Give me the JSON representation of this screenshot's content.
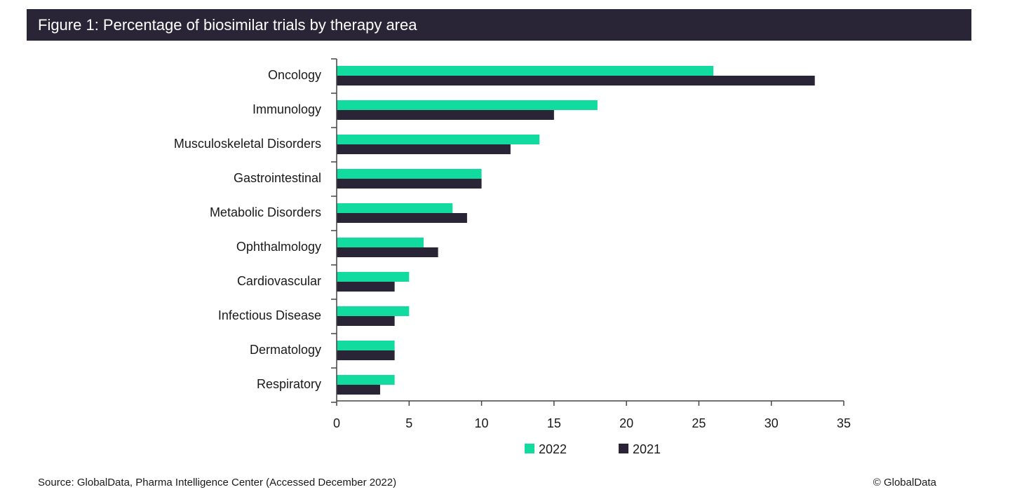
{
  "figure": {
    "title": "Figure 1: Percentage of biosimilar trials by therapy area",
    "source": "Source: GlobalData, Pharma Intelligence Center (Accessed December 2022)",
    "copyright": "© GlobalData"
  },
  "colors": {
    "series_2022": "#12dba0",
    "series_2021": "#2a2536",
    "title_bg": "#2a2536",
    "axis": "#444444"
  },
  "chart_data": {
    "type": "bar",
    "orientation": "horizontal",
    "title": "Figure 1: Percentage of biosimilar trials by therapy area",
    "xlabel": "",
    "ylabel": "",
    "categories": [
      "Oncology",
      "Immunology",
      "Musculoskeletal Disorders",
      "Gastrointestinal",
      "Metabolic Disorders",
      "Ophthalmology",
      "Cardiovascular",
      "Infectious Disease",
      "Dermatology",
      "Respiratory"
    ],
    "series": [
      {
        "name": "2022",
        "values": [
          26,
          18,
          14,
          10,
          8,
          6,
          5,
          5,
          4,
          4
        ]
      },
      {
        "name": "2021",
        "values": [
          33,
          15,
          12,
          10,
          9,
          7,
          4,
          4,
          4,
          3
        ]
      }
    ],
    "xlim": [
      0,
      35
    ],
    "xticks": [
      0,
      5,
      10,
      15,
      20,
      25,
      30,
      35
    ],
    "grid": false,
    "legend_position": "bottom-center"
  }
}
